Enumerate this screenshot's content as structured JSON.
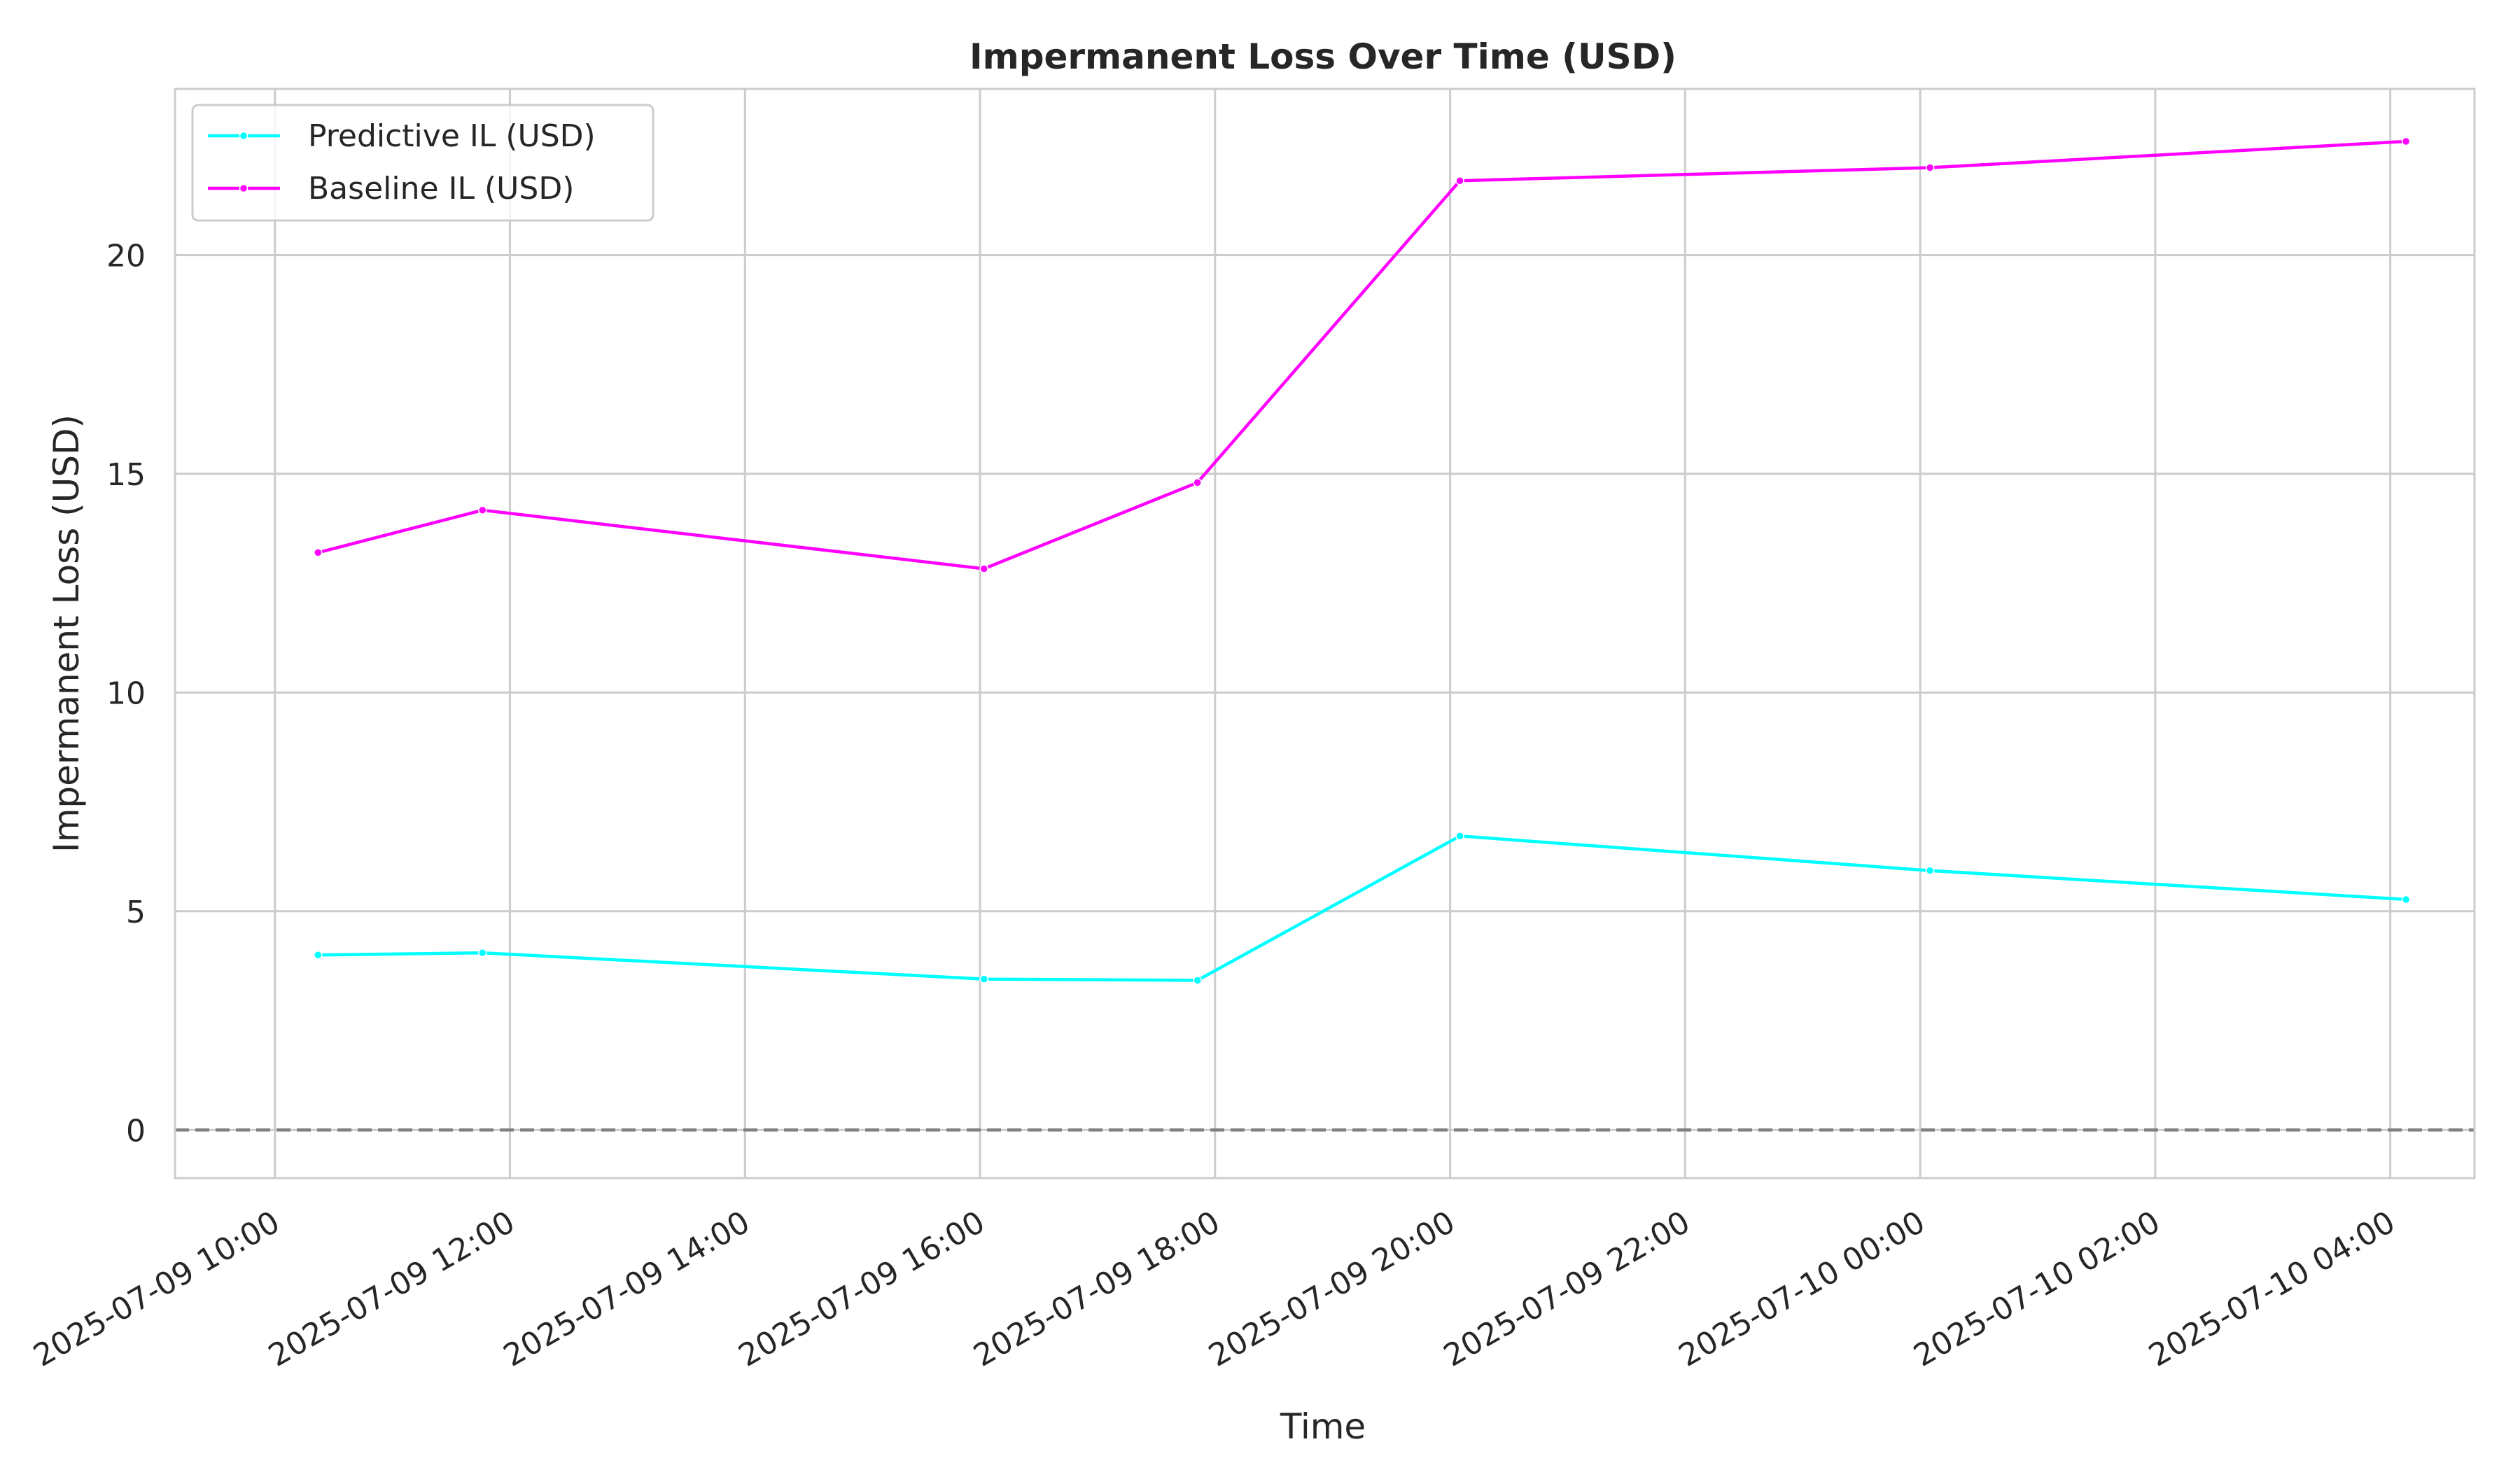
{
  "chart_data": {
    "type": "line",
    "title": "Impermanent Loss Over Time (USD)",
    "xlabel": "Time",
    "ylabel": "Impermanent Loss (USD)",
    "x": [
      "2025-07-09 10:22",
      "2025-07-09 11:46",
      "2025-07-09 16:02",
      "2025-07-09 17:51",
      "2025-07-09 20:05",
      "2025-07-10 00:05",
      "2025-07-10 04:08"
    ],
    "series": [
      {
        "name": "Predictive IL (USD)",
        "color": "#00ffff",
        "values": [
          4.0,
          4.05,
          3.45,
          3.42,
          6.72,
          5.93,
          5.27
        ]
      },
      {
        "name": "Baseline IL (USD)",
        "color": "#ff00ff",
        "values": [
          13.2,
          14.17,
          12.83,
          14.8,
          21.7,
          22.0,
          22.6
        ]
      }
    ],
    "xlim": [
      "2025-07-09 09:09",
      "2025-07-10 04:43"
    ],
    "ylim": [
      -1.1,
      23.8
    ],
    "yticks": [
      0,
      5,
      10,
      15,
      20
    ],
    "xticks": [
      "2025-07-09 10:00",
      "2025-07-09 12:00",
      "2025-07-09 14:00",
      "2025-07-09 16:00",
      "2025-07-09 18:00",
      "2025-07-09 20:00",
      "2025-07-09 22:00",
      "2025-07-10 00:00",
      "2025-07-10 02:00",
      "2025-07-10 04:00"
    ],
    "reference_line": {
      "y": 0,
      "style": "dashed",
      "color": "#808080"
    },
    "grid": true,
    "legend_position": "top-left"
  }
}
